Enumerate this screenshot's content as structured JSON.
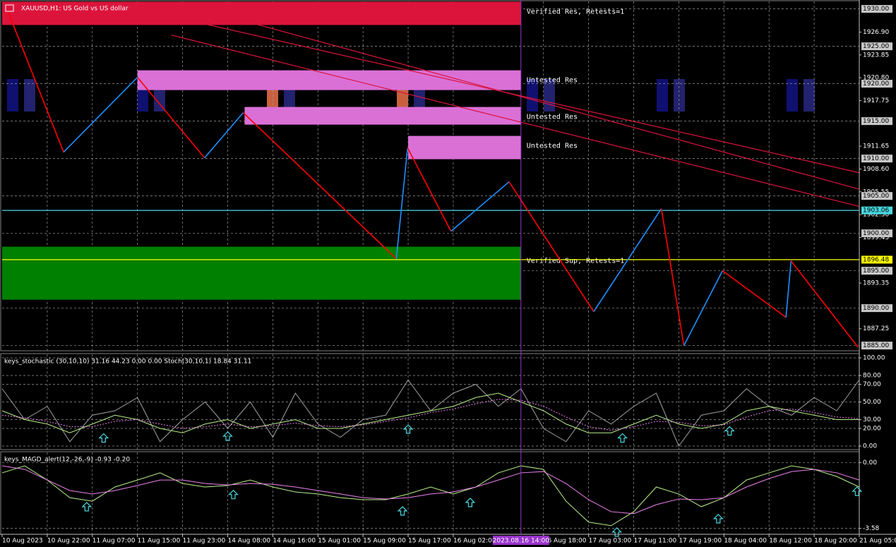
{
  "chart_data": [
    {
      "type": "line",
      "title": "XAUUSD,H1: US Gold vs US dollar",
      "xlim": [
        0,
        152
      ],
      "ylim": [
        1884.3,
        1931.0
      ],
      "xticks": [
        {
          "value": 0,
          "label": "10 Aug 2023"
        },
        {
          "value": 8,
          "label": "10 Aug 22:00"
        },
        {
          "value": 16,
          "label": "11 Aug 07:00"
        },
        {
          "value": 24,
          "label": "11 Aug 15:00"
        },
        {
          "value": 32,
          "label": "11 Aug 23:00"
        },
        {
          "value": 40,
          "label": "14 Aug 08:00"
        },
        {
          "value": 48,
          "label": "14 Aug 16:00"
        },
        {
          "value": 56,
          "label": "15 Aug 01:00"
        },
        {
          "value": 64,
          "label": "15 Aug 09:00"
        },
        {
          "value": 72,
          "label": "15 Aug 17:00"
        },
        {
          "value": 80,
          "label": "16 Aug 02:00"
        },
        {
          "value": 96,
          "label": "16 Aug 18:00"
        },
        {
          "value": 104,
          "label": "17 Aug 03:00"
        },
        {
          "value": 112,
          "label": "17 Aug 11:00"
        },
        {
          "value": 120,
          "label": "17 Aug 19:00"
        },
        {
          "value": 128,
          "label": "18 Aug 04:00"
        },
        {
          "value": 136,
          "label": "18 Aug 12:00"
        },
        {
          "value": 144,
          "label": "18 Aug 20:00"
        },
        {
          "value": 152,
          "label": "21 Aug 05:00"
        }
      ],
      "yticks": [
        {
          "value": 1926.9,
          "label": "1926.90"
        },
        {
          "value": 1923.85,
          "label": "1923.85"
        },
        {
          "value": 1920.8,
          "label": "1920.80"
        },
        {
          "value": 1917.75,
          "label": "1917.75"
        },
        {
          "value": 1911.65,
          "label": "1911.65"
        },
        {
          "value": 1908.6,
          "label": "1908.60"
        },
        {
          "value": 1905.55,
          "label": "1905.55"
        },
        {
          "value": 1902.5,
          "label": "1902.50"
        },
        {
          "value": 1899.45,
          "label": "1899.45"
        },
        {
          "value": 1893.35,
          "label": "1893.35"
        },
        {
          "value": 1887.25,
          "label": "1887.25"
        }
      ],
      "grid_levels": [
        {
          "value": 1930,
          "label": "1930.00"
        },
        {
          "value": 1925,
          "label": "1925.00"
        },
        {
          "value": 1920,
          "label": "1920.00"
        },
        {
          "value": 1915,
          "label": "1915.00"
        },
        {
          "value": 1910,
          "label": "1910.00"
        },
        {
          "value": 1905,
          "label": "1905.00"
        },
        {
          "value": 1900,
          "label": "1900.00"
        },
        {
          "value": 1895,
          "label": "1895.00"
        },
        {
          "value": 1890,
          "label": "1890.00"
        },
        {
          "value": 1885,
          "label": "1885.00"
        }
      ],
      "levels": [
        {
          "value": 1903.06,
          "label": "1903.06",
          "color": "#48d8e0"
        },
        {
          "value": 1896.48,
          "label": "1896.48",
          "color": "#ffff00"
        }
      ],
      "zones": [
        {
          "x": [
            0,
            92
          ],
          "range": [
            1927.85,
            1930.96
          ],
          "color": "#dc143c",
          "label": "Verified Res, Retests=1"
        },
        {
          "x": [
            24,
            92
          ],
          "range": [
            1919.15,
            1921.79
          ],
          "color": "#da70d6",
          "label": "Untested Res"
        },
        {
          "x": [
            43,
            92
          ],
          "range": [
            1914.53,
            1916.89
          ],
          "color": "#da70d6",
          "label": "Untested Res"
        },
        {
          "x": [
            72,
            92
          ],
          "range": [
            1909.91,
            1913.02
          ],
          "color": "#da70d6",
          "label": "Untested Res"
        },
        {
          "x": [
            0,
            92
          ],
          "range": [
            1891.13,
            1898.21
          ],
          "color": "#008000",
          "label": "Verified Sup, Retests=1"
        }
      ],
      "trend_lines": [
        {
          "x": [
            30,
            152
          ],
          "values": [
            1929.0,
            1908.1
          ],
          "color": "#dc143c"
        },
        {
          "x": [
            40,
            152
          ],
          "values": [
            1929.0,
            1905.9
          ],
          "color": "#dc143c"
        },
        {
          "x": [
            30,
            152
          ],
          "values": [
            1926.5,
            1903.6
          ],
          "color": "#dc143c"
        }
      ],
      "zigzag": {
        "x": [
          1.1,
          10.9,
          24,
          35.9,
          42.75,
          69.9,
          71.9,
          79.6,
          89.9,
          104.9,
          116.9,
          120.9,
          127.75,
          139,
          139.9,
          151.75
        ],
        "values": [
          1929.53,
          1910.85,
          1920.85,
          1910.09,
          1916.13,
          1896.6,
          1911.42,
          1900.28,
          1906.89,
          1889.53,
          1903.3,
          1885.0,
          1895.0,
          1888.77,
          1896.32,
          1884.81
        ],
        "up_color": "#1e90ff",
        "down_color": "#ff0000"
      },
      "cursor": {
        "x": 92,
        "label": "2023.08.16 14:00",
        "color": "#9932cc"
      }
    },
    {
      "type": "line",
      "title": "keys_stochastic (30,10,10) 31.16 44.23 0.00 0.00 Stoch(30,10,1) 18.84 31.11",
      "ylim": [
        -4,
        104
      ],
      "yticks": [
        {
          "value": 100,
          "label": "100.00"
        },
        {
          "value": 80,
          "label": "80.00"
        },
        {
          "value": 70,
          "label": "70.00"
        },
        {
          "value": 50,
          "label": "50.00"
        },
        {
          "value": 30,
          "label": "30.00"
        },
        {
          "value": 20,
          "label": "20.00"
        },
        {
          "value": 0,
          "label": "0.00"
        }
      ],
      "x": [
        0,
        4,
        8,
        12,
        16,
        20,
        24,
        28,
        32,
        36,
        40,
        44,
        48,
        52,
        56,
        60,
        64,
        68,
        72,
        76,
        80,
        84,
        88,
        92,
        96,
        100,
        104,
        108,
        112,
        116,
        120,
        124,
        128,
        132,
        136,
        140,
        144,
        148,
        152
      ],
      "series": [
        {
          "color": "#a0a0a0",
          "dashed": false,
          "values": [
            65,
            30,
            45,
            5,
            35,
            40,
            55,
            5,
            30,
            50,
            20,
            50,
            10,
            60,
            25,
            10,
            30,
            35,
            75,
            40,
            60,
            70,
            45,
            65,
            20,
            5,
            40,
            25,
            45,
            60,
            0,
            35,
            40,
            65,
            45,
            35,
            55,
            40,
            75
          ]
        },
        {
          "color": "#b8f088",
          "dashed": false,
          "values": [
            40,
            30,
            25,
            15,
            25,
            35,
            30,
            20,
            15,
            25,
            30,
            20,
            25,
            30,
            20,
            20,
            25,
            30,
            35,
            40,
            45,
            55,
            60,
            50,
            40,
            25,
            15,
            15,
            25,
            35,
            25,
            20,
            25,
            40,
            45,
            40,
            35,
            30,
            30
          ]
        },
        {
          "color": "#ee82ee",
          "dashed": true,
          "values": [
            35,
            32,
            28,
            22,
            22,
            28,
            30,
            25,
            20,
            22,
            25,
            22,
            23,
            26,
            23,
            22,
            24,
            28,
            32,
            38,
            42,
            48,
            53,
            52,
            45,
            33,
            22,
            18,
            22,
            28,
            27,
            23,
            24,
            33,
            40,
            42,
            38,
            33,
            31
          ]
        }
      ],
      "signals": {
        "x": [
          18,
          40,
          72,
          110,
          129
        ],
        "values": [
          14,
          16,
          24,
          14,
          22
        ],
        "color": "#48d8e0"
      }
    },
    {
      "type": "line",
      "title": "keys_MAGD_alert(12,-26,-9) -0.93 -0.20",
      "ylim": [
        -3.9,
        0.55
      ],
      "yticks": [
        {
          "value": 0,
          "label": "0.00"
        },
        {
          "value": -3.58,
          "label": "-3.58"
        }
      ],
      "x": [
        0,
        4,
        8,
        12,
        16,
        20,
        24,
        28,
        32,
        36,
        40,
        44,
        48,
        52,
        56,
        60,
        64,
        68,
        72,
        76,
        80,
        84,
        88,
        92,
        96,
        100,
        104,
        108,
        112,
        116,
        120,
        124,
        128,
        132,
        136,
        140,
        144,
        148,
        152
      ],
      "series": [
        {
          "color": "#b8f088",
          "dashed": false,
          "values": [
            -0.56,
            -0.18,
            -0.95,
            -1.91,
            -2.1,
            -1.33,
            -0.95,
            -0.56,
            -1.14,
            -1.33,
            -1.25,
            -0.95,
            -1.33,
            -1.6,
            -1.71,
            -1.91,
            -2.02,
            -2.02,
            -1.71,
            -1.33,
            -1.71,
            -1.33,
            -0.56,
            -0.18,
            -0.37,
            -2.1,
            -3.24,
            -3.43,
            -2.67,
            -1.33,
            -1.71,
            -2.4,
            -1.91,
            -0.95,
            -0.56,
            -0.18,
            -0.37,
            -0.76,
            -1.33
          ]
        },
        {
          "color": "#ee82ee",
          "dashed": false,
          "values": [
            -0.18,
            -0.37,
            -0.95,
            -1.52,
            -1.71,
            -1.52,
            -1.25,
            -0.95,
            -0.95,
            -1.14,
            -1.22,
            -1.14,
            -1.18,
            -1.33,
            -1.52,
            -1.71,
            -1.91,
            -1.98,
            -1.91,
            -1.71,
            -1.6,
            -1.33,
            -0.95,
            -0.56,
            -0.49,
            -1.14,
            -2.02,
            -2.67,
            -2.78,
            -2.29,
            -1.98,
            -2.02,
            -1.91,
            -1.33,
            -0.87,
            -0.49,
            -0.37,
            -0.56,
            -0.95
          ]
        }
      ],
      "signals": {
        "x": [
          15,
          41,
          71,
          83,
          109,
          127,
          151.6
        ],
        "values": [
          -2.17,
          -1.51,
          -2.4,
          -1.94,
          -3.55,
          -2.82,
          -1.33
        ],
        "color": "#48d8e0"
      }
    }
  ]
}
